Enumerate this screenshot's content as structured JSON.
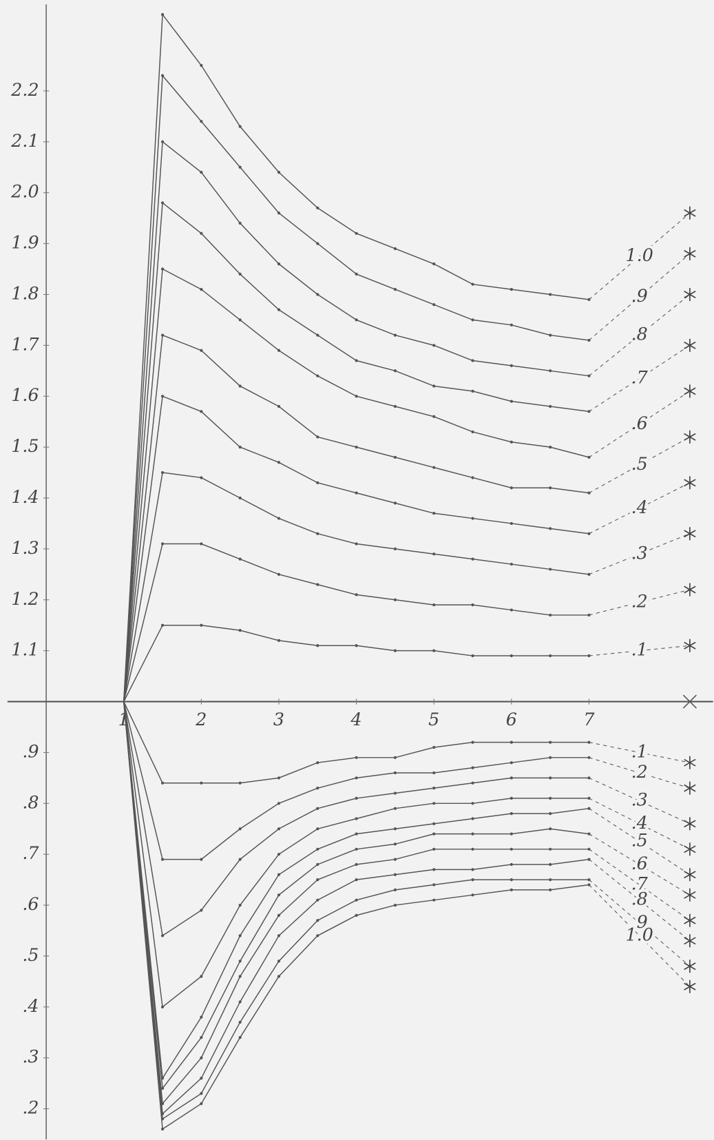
{
  "chart_data": {
    "type": "line",
    "color": "#555555",
    "x": [
      1,
      1.5,
      2,
      2.5,
      3,
      3.5,
      4,
      4.5,
      5,
      5.5,
      6,
      6.5,
      7,
      8.3
    ],
    "xlim": [
      -0.5,
      8.6
    ],
    "xticks": [
      1,
      2,
      3,
      4,
      5,
      6,
      7
    ],
    "ylim": [
      0.14,
      2.37
    ],
    "yticks": [
      2.2,
      2.1,
      {
        "value": 2.0,
        "label": "2.0"
      },
      1.9,
      1.8,
      1.7,
      1.6,
      1.5,
      1.4,
      1.3,
      1.2,
      1.1,
      {
        "value": 0.9,
        "label": ".9"
      },
      {
        "value": 0.8,
        "label": ".8"
      },
      {
        "value": 0.7,
        "label": ".7"
      },
      {
        "value": 0.6,
        "label": ".6"
      },
      {
        "value": 0.5,
        "label": ".5"
      },
      {
        "value": 0.4,
        "label": ".4"
      },
      {
        "value": 0.3,
        "label": ".3"
      },
      {
        "value": 0.2,
        "label": ".2"
      }
    ],
    "series": [
      {
        "name": "1.0",
        "values": [
          1.0,
          2.35,
          2.25,
          2.13,
          2.04,
          1.97,
          1.92,
          1.89,
          1.86,
          1.82,
          1.81,
          1.8,
          1.79,
          1.96
        ]
      },
      {
        "name": ".9",
        "values": [
          1.0,
          2.23,
          2.14,
          2.05,
          1.96,
          1.9,
          1.84,
          1.81,
          1.78,
          1.75,
          1.74,
          1.72,
          1.71,
          1.88
        ]
      },
      {
        "name": ".8",
        "values": [
          1.0,
          2.1,
          2.04,
          1.94,
          1.86,
          1.8,
          1.75,
          1.72,
          1.7,
          1.67,
          1.66,
          1.65,
          1.64,
          1.8
        ]
      },
      {
        "name": ".7",
        "values": [
          1.0,
          1.98,
          1.92,
          1.84,
          1.77,
          1.72,
          1.67,
          1.65,
          1.62,
          1.61,
          1.59,
          1.58,
          1.57,
          1.7
        ]
      },
      {
        "name": ".6",
        "values": [
          1.0,
          1.85,
          1.81,
          1.75,
          1.69,
          1.64,
          1.6,
          1.58,
          1.56,
          1.53,
          1.51,
          1.5,
          1.48,
          1.61
        ]
      },
      {
        "name": ".5",
        "values": [
          1.0,
          1.72,
          1.69,
          1.62,
          1.58,
          1.52,
          1.5,
          1.48,
          1.46,
          1.44,
          1.42,
          1.42,
          1.41,
          1.52
        ]
      },
      {
        "name": ".4",
        "values": [
          1.0,
          1.6,
          1.57,
          1.5,
          1.47,
          1.43,
          1.41,
          1.39,
          1.37,
          1.36,
          1.35,
          1.34,
          1.33,
          1.43
        ]
      },
      {
        "name": ".3",
        "values": [
          1.0,
          1.45,
          1.44,
          1.4,
          1.36,
          1.33,
          1.31,
          1.3,
          1.29,
          1.28,
          1.27,
          1.26,
          1.25,
          1.33
        ]
      },
      {
        "name": ".2",
        "values": [
          1.0,
          1.31,
          1.31,
          1.28,
          1.25,
          1.23,
          1.21,
          1.2,
          1.19,
          1.19,
          1.18,
          1.17,
          1.17,
          1.22
        ]
      },
      {
        "name": ".1",
        "values": [
          1.0,
          1.15,
          1.15,
          1.14,
          1.12,
          1.11,
          1.11,
          1.1,
          1.1,
          1.09,
          1.09,
          1.09,
          1.09,
          1.11
        ]
      },
      {
        "name": ".1",
        "values": [
          1.0,
          0.84,
          0.84,
          0.84,
          0.85,
          0.88,
          0.89,
          0.89,
          0.91,
          0.92,
          0.92,
          0.92,
          0.92,
          0.88
        ]
      },
      {
        "name": ".2",
        "values": [
          1.0,
          0.69,
          0.69,
          0.75,
          0.8,
          0.83,
          0.85,
          0.86,
          0.86,
          0.87,
          0.88,
          0.89,
          0.89,
          0.83
        ]
      },
      {
        "name": ".3",
        "values": [
          1.0,
          0.54,
          0.59,
          0.69,
          0.75,
          0.79,
          0.81,
          0.82,
          0.83,
          0.84,
          0.85,
          0.85,
          0.85,
          0.76
        ]
      },
      {
        "name": ".4",
        "values": [
          1.0,
          0.4,
          0.46,
          0.6,
          0.7,
          0.75,
          0.77,
          0.79,
          0.8,
          0.8,
          0.81,
          0.81,
          0.81,
          0.71
        ]
      },
      {
        "name": ".5",
        "values": [
          1.0,
          0.26,
          0.38,
          0.54,
          0.66,
          0.71,
          0.74,
          0.75,
          0.76,
          0.77,
          0.78,
          0.78,
          0.79,
          0.66
        ]
      },
      {
        "name": ".6",
        "values": [
          1.0,
          0.24,
          0.34,
          0.49,
          0.62,
          0.68,
          0.71,
          0.72,
          0.74,
          0.74,
          0.74,
          0.75,
          0.74,
          0.62
        ]
      },
      {
        "name": ".7",
        "values": [
          1.0,
          0.21,
          0.3,
          0.46,
          0.58,
          0.65,
          0.68,
          0.69,
          0.71,
          0.71,
          0.71,
          0.71,
          0.71,
          0.57
        ]
      },
      {
        "name": ".8",
        "values": [
          1.0,
          0.19,
          0.26,
          0.41,
          0.54,
          0.61,
          0.65,
          0.66,
          0.67,
          0.67,
          0.68,
          0.68,
          0.69,
          0.53
        ]
      },
      {
        "name": ".9",
        "values": [
          1.0,
          0.18,
          0.23,
          0.37,
          0.49,
          0.57,
          0.61,
          0.63,
          0.64,
          0.65,
          0.65,
          0.65,
          0.65,
          0.48
        ]
      },
      {
        "name": "1.0",
        "values": [
          1.0,
          0.16,
          0.21,
          0.34,
          0.46,
          0.54,
          0.58,
          0.6,
          0.61,
          0.62,
          0.63,
          0.63,
          0.64,
          0.44
        ]
      }
    ]
  }
}
